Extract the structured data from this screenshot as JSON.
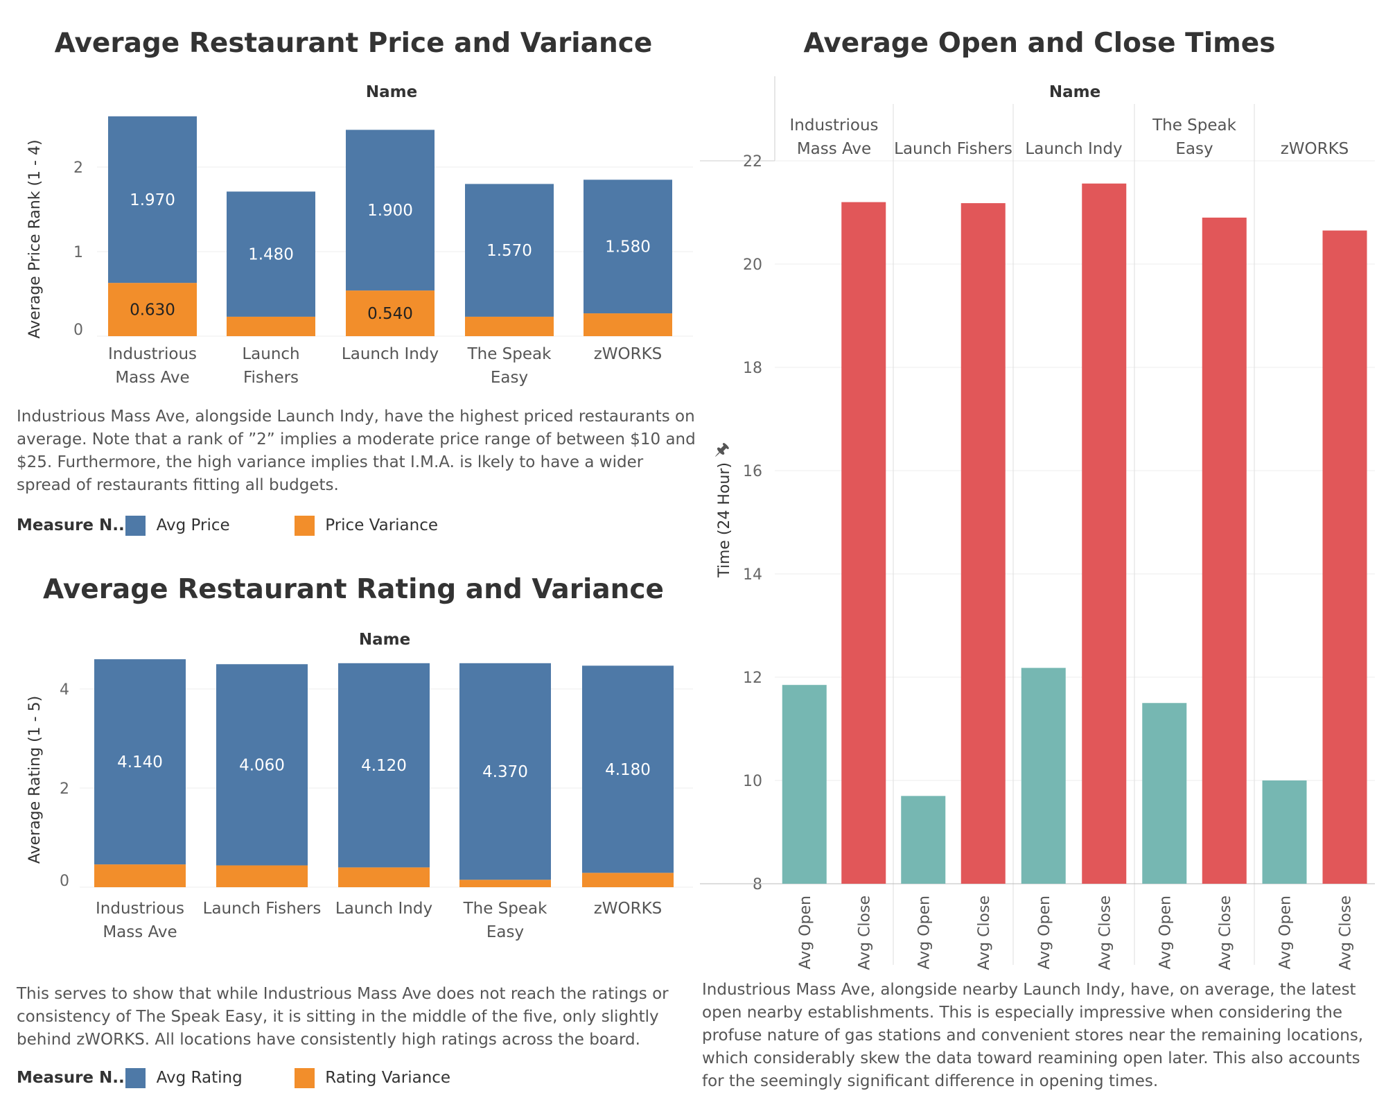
{
  "price": {
    "title": "Average Restaurant Price and Variance",
    "header": "Name",
    "ylabel": "Average Price Rank  (1 - 4)",
    "note": "Industrious Mass Ave, alongside Launch Indy, have the highest priced restaurants on average. Note that a rank of ”2” implies a moderate price range of between $10 and $25. Furthermore, the high variance implies that I.M.A. is lkely to have a wider spread of restaurants fitting all budgets.",
    "legend": {
      "title": "Measure N..",
      "items": [
        "Avg Price",
        "Price Variance"
      ]
    }
  },
  "rating": {
    "title": "Average Restaurant Rating and Variance",
    "header": "Name",
    "ylabel": "Average Rating  (1 - 5)",
    "note": "This serves to show that while Industrious Mass Ave does not reach the ratings or consistency of The Speak Easy, it is sitting in the middle of the five, only slightly behind zWORKS. All locations have consistently high ratings across the board.",
    "legend": {
      "title": "Measure N..",
      "items": [
        "Avg Rating",
        "Rating Variance"
      ]
    }
  },
  "times": {
    "title": "Average Open and Close Times",
    "header": "Name",
    "ylabel": "Time (24 Hour)",
    "note": "Industrious Mass Ave, alongside nearby Launch Indy, have, on average, the latest open nearby establishments. This is especially impressive when considering the profuse nature of gas stations and convenient stores near the remaining locations, which considerably skew the data toward reamining open later. This also accounts for the seemingly significant difference in opening times."
  },
  "colors": {
    "blue": "#4e79a7",
    "orange": "#f28e2b",
    "teal": "#76b7b2",
    "red": "#e15759"
  },
  "chart_data": [
    {
      "type": "bar",
      "stacked": true,
      "title": "Average Restaurant Price and Variance",
      "xlabel": "Name",
      "ylabel": "Average Price Rank  (1 - 4)",
      "categories": [
        "Industrious Mass Ave",
        "Launch Fishers",
        "Launch Indy",
        "The Speak Easy",
        "zWORKS"
      ],
      "series": [
        {
          "name": "Price Variance",
          "values": [
            0.63,
            0.23,
            0.54,
            0.23,
            0.27
          ],
          "labels": [
            "0.630",
            "",
            "0.540",
            "",
            ""
          ]
        },
        {
          "name": "Avg Price",
          "values": [
            1.97,
            1.48,
            1.9,
            1.57,
            1.58
          ],
          "labels": [
            "1.970",
            "1.480",
            "1.900",
            "1.570",
            "1.580"
          ]
        }
      ],
      "ylim": [
        0,
        2.7
      ],
      "yticks": [
        0,
        1,
        2
      ],
      "legend": "bottom-left"
    },
    {
      "type": "bar",
      "stacked": true,
      "title": "Average Restaurant Rating and Variance",
      "xlabel": "Name",
      "ylabel": "Average Rating  (1 - 5)",
      "categories": [
        "Industrious Mass Ave",
        "Launch Fishers",
        "Launch Indy",
        "The Speak Easy",
        "zWORKS"
      ],
      "series": [
        {
          "name": "Rating Variance",
          "values": [
            0.46,
            0.44,
            0.4,
            0.15,
            0.29
          ],
          "labels": [
            "",
            "",
            "",
            "",
            ""
          ]
        },
        {
          "name": "Avg Rating",
          "values": [
            4.14,
            4.06,
            4.12,
            4.37,
            4.18
          ],
          "labels": [
            "4.140",
            "4.060",
            "4.120",
            "4.370",
            "4.180"
          ]
        }
      ],
      "ylim": [
        0,
        4.8
      ],
      "yticks": [
        0,
        2,
        4
      ],
      "legend": "bottom-left"
    },
    {
      "type": "bar",
      "title": "Average Open and Close Times",
      "xlabel": "Name",
      "ylabel": "Time (24 Hour)",
      "categories": [
        "Industrious Mass Ave",
        "Launch Fishers",
        "Launch Indy",
        "The Speak Easy",
        "zWORKS"
      ],
      "subcategories": [
        "Avg Open",
        "Avg Close"
      ],
      "series": [
        {
          "name": "Avg Open",
          "values": [
            11.85,
            9.7,
            12.18,
            11.5,
            10.0
          ]
        },
        {
          "name": "Avg Close",
          "values": [
            21.2,
            21.18,
            21.56,
            20.9,
            20.65
          ]
        }
      ],
      "ylim": [
        8,
        22.2
      ],
      "yticks": [
        8,
        10,
        12,
        14,
        16,
        18,
        20,
        22
      ],
      "grid": true
    }
  ]
}
